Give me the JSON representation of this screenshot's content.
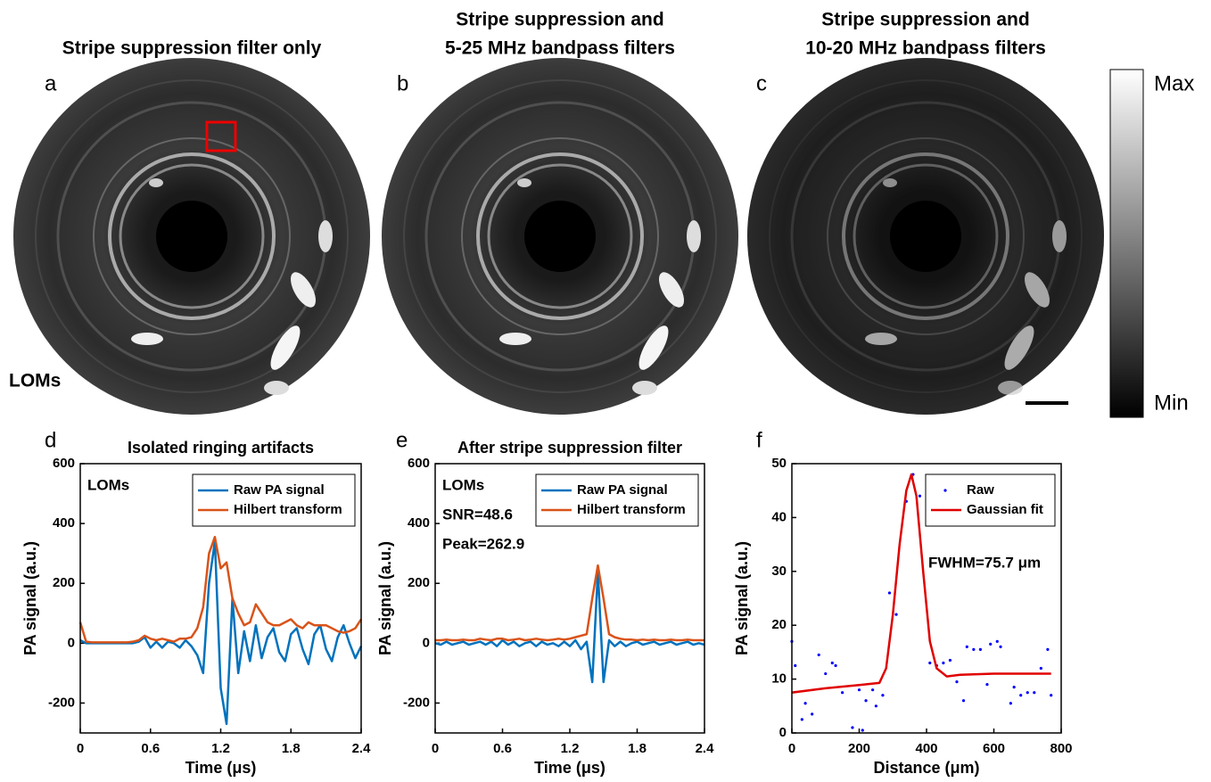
{
  "panels": [
    {
      "label": "a",
      "title": [
        "Stripe suppression filter only"
      ],
      "annotation": "LOMs"
    },
    {
      "label": "b",
      "title": [
        "Stripe suppression and",
        "5-25 MHz bandpass filters"
      ]
    },
    {
      "label": "c",
      "title": [
        "Stripe suppression and",
        "10-20 MHz bandpass filters"
      ]
    }
  ],
  "colorbar": {
    "max": "Max",
    "min": "Min"
  },
  "chart_data": [
    {
      "type": "line",
      "label": "d",
      "title": "Isolated ringing artifacts",
      "xlabel": "Time (μs)",
      "ylabel": "PA signal (a.u.)",
      "annotations": [
        "LOMs"
      ],
      "legend": "upper right",
      "xlim": [
        0,
        2.4
      ],
      "xticks": [
        0,
        0.6,
        1.2,
        1.8,
        2.4
      ],
      "ylim": [
        -300,
        600
      ],
      "yticks": [
        -200,
        0,
        200,
        400,
        600
      ],
      "x": [
        0,
        0.05,
        0.1,
        0.15,
        0.2,
        0.25,
        0.3,
        0.35,
        0.4,
        0.45,
        0.5,
        0.55,
        0.6,
        0.65,
        0.7,
        0.75,
        0.8,
        0.85,
        0.9,
        0.95,
        1.0,
        1.05,
        1.1,
        1.15,
        1.2,
        1.25,
        1.3,
        1.35,
        1.4,
        1.45,
        1.5,
        1.55,
        1.6,
        1.65,
        1.7,
        1.75,
        1.8,
        1.85,
        1.9,
        1.95,
        2.0,
        2.05,
        2.1,
        2.15,
        2.2,
        2.25,
        2.3,
        2.35,
        2.4
      ],
      "series": [
        {
          "name": "Raw PA signal",
          "color": "#0072bd",
          "mode": "line",
          "values": [
            10,
            0,
            0,
            0,
            0,
            0,
            0,
            0,
            0,
            0,
            5,
            20,
            -15,
            5,
            -15,
            5,
            0,
            -15,
            10,
            -10,
            -40,
            -100,
            200,
            340,
            -150,
            -270,
            150,
            -100,
            40,
            -60,
            60,
            -50,
            20,
            50,
            -30,
            -60,
            30,
            50,
            -20,
            -70,
            30,
            60,
            -20,
            -60,
            20,
            60,
            0,
            -50,
            -10
          ]
        },
        {
          "name": "Hilbert transform",
          "color": "#d95319",
          "mode": "line",
          "values": [
            70,
            5,
            3,
            3,
            3,
            3,
            3,
            3,
            3,
            5,
            10,
            25,
            15,
            10,
            15,
            10,
            5,
            15,
            15,
            20,
            50,
            120,
            300,
            355,
            250,
            270,
            150,
            100,
            60,
            70,
            130,
            100,
            70,
            60,
            60,
            70,
            80,
            60,
            50,
            70,
            60,
            60,
            60,
            50,
            40,
            35,
            40,
            50,
            80
          ]
        }
      ]
    },
    {
      "type": "line",
      "label": "e",
      "title": "After stripe suppression filter",
      "xlabel": "Time (μs)",
      "ylabel": "PA signal (a.u.)",
      "annotations": [
        "LOMs",
        "SNR=48.6",
        "Peak=262.9"
      ],
      "legend": "upper right",
      "xlim": [
        0,
        2.4
      ],
      "xticks": [
        0,
        0.6,
        1.2,
        1.8,
        2.4
      ],
      "ylim": [
        -300,
        600
      ],
      "yticks": [
        -200,
        0,
        200,
        400,
        600
      ],
      "x": [
        0,
        0.05,
        0.1,
        0.15,
        0.2,
        0.25,
        0.3,
        0.35,
        0.4,
        0.45,
        0.5,
        0.55,
        0.6,
        0.65,
        0.7,
        0.75,
        0.8,
        0.85,
        0.9,
        0.95,
        1.0,
        1.05,
        1.1,
        1.15,
        1.2,
        1.25,
        1.3,
        1.35,
        1.4,
        1.45,
        1.5,
        1.55,
        1.6,
        1.65,
        1.7,
        1.75,
        1.8,
        1.85,
        1.9,
        1.95,
        2.0,
        2.05,
        2.1,
        2.15,
        2.2,
        2.25,
        2.3,
        2.35,
        2.4
      ],
      "series": [
        {
          "name": "Raw PA signal",
          "color": "#0072bd",
          "mode": "line",
          "values": [
            0,
            -5,
            5,
            -5,
            0,
            5,
            -5,
            0,
            5,
            -5,
            5,
            -10,
            10,
            -5,
            5,
            -10,
            0,
            5,
            -10,
            5,
            -5,
            0,
            -10,
            5,
            -10,
            10,
            -20,
            5,
            -130,
            240,
            -130,
            10,
            -10,
            5,
            -10,
            0,
            5,
            -5,
            0,
            5,
            -5,
            0,
            5,
            -5,
            0,
            5,
            -5,
            0,
            -5
          ]
        },
        {
          "name": "Hilbert transform",
          "color": "#d95319",
          "mode": "line",
          "values": [
            10,
            10,
            12,
            10,
            10,
            12,
            10,
            10,
            15,
            12,
            10,
            15,
            15,
            10,
            12,
            15,
            10,
            12,
            15,
            12,
            10,
            12,
            15,
            12,
            15,
            20,
            25,
            30,
            150,
            260,
            150,
            30,
            20,
            15,
            12,
            12,
            10,
            12,
            10,
            12,
            10,
            10,
            12,
            10,
            10,
            12,
            10,
            10,
            10
          ]
        }
      ]
    },
    {
      "type": "line",
      "label": "f",
      "xlabel": "Distance (μm)",
      "ylabel": "PA signal (a.u.)",
      "annotations": [
        "FWHM=75.7 μm"
      ],
      "legend": "upper right",
      "xlim": [
        0,
        800
      ],
      "xticks": [
        0,
        200,
        400,
        600,
        800
      ],
      "ylim": [
        0,
        50
      ],
      "yticks": [
        0,
        10,
        20,
        30,
        40,
        50
      ],
      "series": [
        {
          "name": "Raw",
          "color": "#0000ff",
          "mode": "markers",
          "x": [
            0,
            10,
            30,
            40,
            60,
            80,
            100,
            120,
            130,
            150,
            180,
            200,
            210,
            220,
            240,
            250,
            270,
            290,
            310,
            340,
            360,
            380,
            410,
            430,
            450,
            470,
            490,
            510,
            520,
            540,
            560,
            580,
            590,
            610,
            620,
            650,
            660,
            680,
            700,
            720,
            740,
            760,
            770
          ],
          "values": [
            17,
            12.5,
            2.5,
            5.5,
            3.5,
            14.5,
            11,
            13,
            12.5,
            7.5,
            1,
            8,
            0.5,
            6,
            8,
            5,
            7,
            26,
            22,
            43,
            48,
            44,
            13,
            12.5,
            13,
            13.5,
            9.5,
            6,
            16,
            15.5,
            15.5,
            9,
            16.5,
            17,
            16,
            5.5,
            8.5,
            7,
            7.5,
            7.5,
            12,
            15.5,
            7
          ]
        },
        {
          "name": "Gaussian fit",
          "color": "#e00000",
          "mode": "line",
          "x": [
            0,
            100,
            200,
            260,
            280,
            300,
            320,
            340,
            355,
            370,
            390,
            410,
            430,
            460,
            500,
            600,
            700,
            770
          ],
          "values": [
            7.5,
            8.3,
            8.9,
            9.3,
            12,
            22,
            35,
            45,
            48,
            44,
            30,
            17,
            12,
            10.5,
            10.8,
            11,
            11,
            11
          ]
        }
      ]
    }
  ]
}
